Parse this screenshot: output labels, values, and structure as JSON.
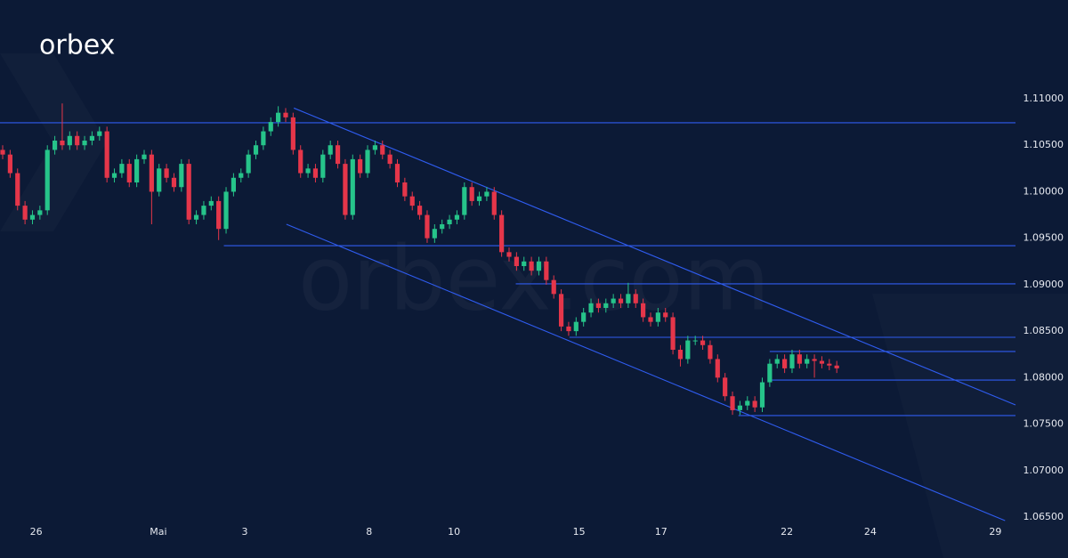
{
  "chart_data": {
    "type": "candlestick",
    "brand": "orbex",
    "watermark": "orbex.com",
    "up_color": "#26c48a",
    "down_color": "#e5364a",
    "line_color": "#2f5cf0",
    "xlim": [
      -0.36,
      136
    ],
    "ylim": [
      1.065,
      1.11
    ],
    "xticks": [
      {
        "value": 4.5,
        "label": "26"
      },
      {
        "value": 20.9,
        "label": "Mai"
      },
      {
        "value": 32.5,
        "label": "3"
      },
      {
        "value": 49.2,
        "label": "8"
      },
      {
        "value": 60.6,
        "label": "10"
      },
      {
        "value": 77.4,
        "label": "15"
      },
      {
        "value": 88.4,
        "label": "17"
      },
      {
        "value": 105.3,
        "label": "22"
      },
      {
        "value": 116.5,
        "label": "24"
      },
      {
        "value": 133.3,
        "label": "29"
      }
    ],
    "yticks": [
      {
        "value": 1.065,
        "label": "1.06500"
      },
      {
        "value": 1.07,
        "label": "1.07000"
      },
      {
        "value": 1.075,
        "label": "1.07500"
      },
      {
        "value": 1.08,
        "label": "1.08000"
      },
      {
        "value": 1.085,
        "label": "1.08500"
      },
      {
        "value": 1.09,
        "label": "1.09000"
      },
      {
        "value": 1.095,
        "label": "1.09500"
      },
      {
        "value": 1.1,
        "label": "1.10000"
      },
      {
        "value": 1.105,
        "label": "1.10500"
      },
      {
        "value": 1.11,
        "label": "1.11000"
      }
    ],
    "open": [
      1.1045,
      1.104,
      1.102,
      1.0985,
      1.097,
      1.0975,
      1.098,
      1.1045,
      1.1055,
      1.105,
      1.106,
      1.105,
      1.1055,
      1.106,
      1.1065,
      1.1015,
      1.102,
      1.103,
      1.101,
      1.1035,
      1.104,
      1.1,
      1.1025,
      1.1015,
      1.1005,
      1.103,
      1.097,
      1.0975,
      1.0985,
      1.099,
      1.096,
      1.1,
      1.1015,
      1.102,
      1.104,
      1.105,
      1.1065,
      1.1075,
      1.1085,
      1.108,
      1.1045,
      1.102,
      1.1025,
      1.1015,
      1.104,
      1.105,
      1.103,
      1.0975,
      1.1035,
      1.102,
      1.1045,
      1.105,
      1.104,
      1.103,
      1.101,
      1.0995,
      1.0985,
      1.0975,
      1.095,
      1.096,
      1.0965,
      1.097,
      1.0975,
      1.1005,
      1.099,
      1.0995,
      1.1,
      1.0975,
      1.0935,
      1.093,
      1.092,
      1.0925,
      1.0915,
      1.0925,
      1.0905,
      1.089,
      1.0855,
      1.085,
      1.086,
      1.087,
      1.088,
      1.0875,
      1.088,
      1.0885,
      1.088,
      1.089,
      1.088,
      1.0865,
      1.086,
      1.087,
      1.0865,
      1.083,
      1.082,
      1.084,
      1.084,
      1.0835,
      1.082,
      1.08,
      1.078,
      1.0765,
      1.077,
      1.0775,
      1.0768,
      1.0795,
      1.0815,
      1.082,
      1.081,
      1.0825,
      1.0815,
      1.082,
      1.0818,
      1.0815,
      1.0813
    ],
    "high": [
      1.105,
      1.1045,
      1.1025,
      1.099,
      1.098,
      1.0985,
      1.105,
      1.106,
      1.1095,
      1.1065,
      1.1065,
      1.106,
      1.1065,
      1.107,
      1.107,
      1.1025,
      1.1035,
      1.1035,
      1.104,
      1.1045,
      1.1045,
      1.103,
      1.103,
      1.102,
      1.1035,
      1.1035,
      1.098,
      1.099,
      1.0995,
      1.0995,
      1.1005,
      1.102,
      1.1025,
      1.1045,
      1.1055,
      1.107,
      1.108,
      1.1092,
      1.109,
      1.1085,
      1.105,
      1.103,
      1.103,
      1.1045,
      1.1055,
      1.1055,
      1.1035,
      1.104,
      1.104,
      1.105,
      1.1055,
      1.1055,
      1.1045,
      1.1035,
      1.1015,
      1.1,
      1.099,
      1.098,
      1.0965,
      1.097,
      1.0975,
      1.098,
      1.101,
      1.101,
      1.1,
      1.1005,
      1.1005,
      1.098,
      1.094,
      1.0935,
      1.093,
      1.093,
      1.093,
      1.093,
      1.091,
      1.0895,
      1.086,
      1.0865,
      1.0875,
      1.0885,
      1.0885,
      1.0885,
      1.089,
      1.089,
      1.0902,
      1.0895,
      1.0885,
      1.087,
      1.0875,
      1.0875,
      1.087,
      1.0835,
      1.0845,
      1.0845,
      1.0845,
      1.084,
      1.0825,
      1.0805,
      1.0785,
      1.0775,
      1.078,
      1.078,
      1.08,
      1.082,
      1.0825,
      1.0825,
      1.083,
      1.083,
      1.0825,
      1.0825,
      1.0823,
      1.082,
      1.0818
    ],
    "low": [
      1.1035,
      1.1015,
      1.098,
      1.0965,
      1.0965,
      1.097,
      1.0975,
      1.104,
      1.1045,
      1.1045,
      1.1045,
      1.1045,
      1.105,
      1.1055,
      1.101,
      1.101,
      1.1015,
      1.1005,
      1.1005,
      1.103,
      1.0965,
      1.0995,
      1.101,
      1.1,
      1.1,
      1.0965,
      1.0965,
      1.097,
      1.098,
      1.0948,
      1.0955,
      1.0995,
      1.101,
      1.1015,
      1.1035,
      1.1045,
      1.106,
      1.107,
      1.1075,
      1.104,
      1.1015,
      1.1015,
      1.101,
      1.101,
      1.1035,
      1.1025,
      1.097,
      1.097,
      1.1015,
      1.1015,
      1.104,
      1.1035,
      1.1025,
      1.1005,
      1.099,
      1.098,
      1.097,
      1.0945,
      1.0945,
      1.0955,
      1.096,
      1.0965,
      1.097,
      1.0985,
      1.0985,
      1.099,
      1.097,
      1.093,
      1.0925,
      1.0915,
      1.0915,
      1.091,
      1.091,
      1.09,
      1.0885,
      1.085,
      1.0845,
      1.0845,
      1.0855,
      1.0865,
      1.087,
      1.087,
      1.0875,
      1.0875,
      1.0875,
      1.0875,
      1.086,
      1.0855,
      1.0855,
      1.086,
      1.0825,
      1.0812,
      1.0815,
      1.0835,
      1.083,
      1.0815,
      1.0795,
      1.0775,
      1.076,
      1.076,
      1.0765,
      1.0763,
      1.0763,
      1.079,
      1.081,
      1.0805,
      1.0805,
      1.081,
      1.081,
      1.08,
      1.081,
      1.0808,
      1.0805
    ],
    "close": [
      1.104,
      1.102,
      1.0985,
      1.097,
      1.0975,
      1.098,
      1.1045,
      1.1055,
      1.105,
      1.106,
      1.105,
      1.1055,
      1.106,
      1.1065,
      1.1015,
      1.102,
      1.103,
      1.101,
      1.1035,
      1.104,
      1.1,
      1.1025,
      1.1015,
      1.1005,
      1.103,
      1.097,
      1.0975,
      1.0985,
      1.099,
      1.096,
      1.1,
      1.1015,
      1.102,
      1.104,
      1.105,
      1.1065,
      1.1075,
      1.1085,
      1.108,
      1.1045,
      1.102,
      1.1025,
      1.1015,
      1.104,
      1.105,
      1.103,
      1.0975,
      1.1035,
      1.102,
      1.1045,
      1.105,
      1.104,
      1.103,
      1.101,
      1.0995,
      1.0985,
      1.0975,
      1.095,
      1.096,
      1.0965,
      1.097,
      1.0975,
      1.1005,
      1.099,
      1.0995,
      1.1,
      1.0975,
      1.0935,
      1.093,
      1.092,
      1.0925,
      1.0915,
      1.0925,
      1.0905,
      1.089,
      1.0855,
      1.085,
      1.086,
      1.087,
      1.088,
      1.0875,
      1.088,
      1.0885,
      1.088,
      1.089,
      1.088,
      1.0865,
      1.086,
      1.087,
      1.0865,
      1.083,
      1.082,
      1.084,
      1.084,
      1.0835,
      1.082,
      1.08,
      1.078,
      1.0765,
      1.077,
      1.0775,
      1.0768,
      1.0795,
      1.0815,
      1.082,
      1.081,
      1.0825,
      1.0815,
      1.082,
      1.0818,
      1.0815,
      1.0813,
      1.081
    ],
    "lines": [
      {
        "x": [
          -0.36,
          136
        ],
        "y": [
          1.10742,
          1.10742
        ]
      },
      {
        "x": [
          29.7,
          136
        ],
        "y": [
          1.0942,
          1.0942
        ]
      },
      {
        "x": [
          68.9,
          136
        ],
        "y": [
          1.09009,
          1.09009
        ]
      },
      {
        "x": [
          76.1,
          136
        ],
        "y": [
          1.08434,
          1.08434
        ]
      },
      {
        "x": [
          103,
          136
        ],
        "y": [
          1.08281,
          1.08281
        ]
      },
      {
        "x": [
          103,
          136
        ],
        "y": [
          1.07974,
          1.07974
        ]
      },
      {
        "x": [
          98.8,
          136
        ],
        "y": [
          1.07592,
          1.07592
        ]
      },
      {
        "x": [
          39.1,
          136
        ],
        "y": [
          1.109,
          1.07706
        ]
      },
      {
        "x": [
          38.1,
          134.6
        ],
        "y": [
          1.0965,
          1.06462
        ]
      }
    ]
  }
}
